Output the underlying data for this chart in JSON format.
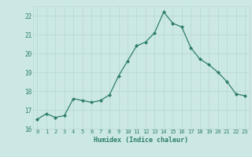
{
  "x": [
    0,
    1,
    2,
    3,
    4,
    5,
    6,
    7,
    8,
    9,
    10,
    11,
    12,
    13,
    14,
    15,
    16,
    17,
    18,
    19,
    20,
    21,
    22,
    23
  ],
  "y": [
    16.5,
    16.8,
    16.6,
    16.7,
    17.6,
    17.5,
    17.4,
    17.5,
    17.8,
    18.8,
    19.6,
    20.4,
    20.6,
    21.1,
    22.2,
    21.6,
    21.4,
    20.3,
    19.7,
    19.4,
    19.0,
    18.5,
    17.85,
    17.75
  ],
  "line_color": "#2d7d6e",
  "marker": "D",
  "marker_size": 2.0,
  "bg_color": "#cce8e4",
  "grid_color": "#b8d8d4",
  "tick_color": "#2d7d6e",
  "label_color": "#2d7d6e",
  "xlabel": "Humidex (Indice chaleur)",
  "ylim": [
    16,
    22.5
  ],
  "yticks": [
    16,
    17,
    18,
    19,
    20,
    21,
    22
  ],
  "xticks": [
    0,
    1,
    2,
    3,
    4,
    5,
    6,
    7,
    8,
    9,
    10,
    11,
    12,
    13,
    14,
    15,
    16,
    17,
    18,
    19,
    20,
    21,
    22,
    23
  ]
}
